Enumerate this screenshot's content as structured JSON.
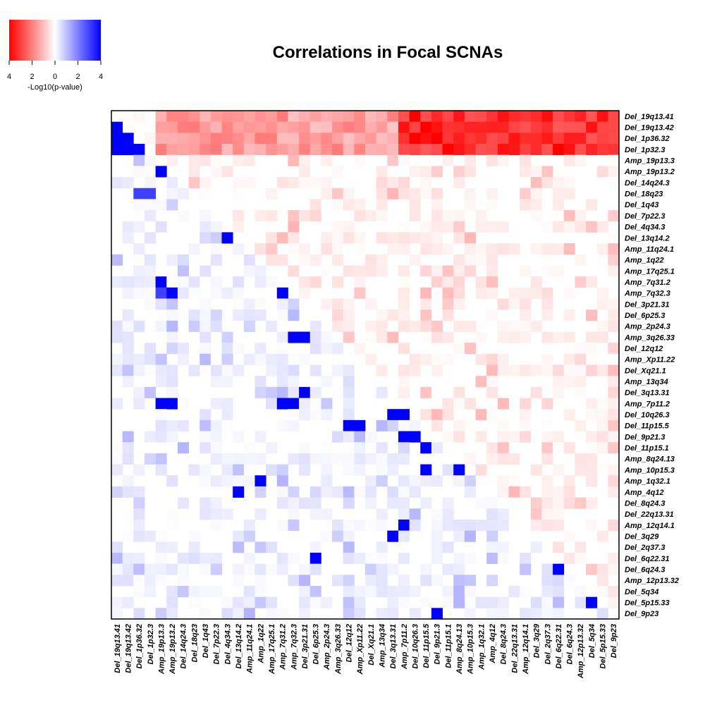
{
  "chart_data": {
    "type": "heatmap",
    "title": "Correlations in Focal SCNAs",
    "labels": [
      "Del_19q13.41",
      "Del_19q13.42",
      "Del_1p36.32",
      "Del_1p32.3",
      "Amp_19p13.3",
      "Amp_19p13.2",
      "Del_14q24.3",
      "Del_18q23",
      "Del_1q43",
      "Del_7p22.3",
      "Del_4q34.3",
      "Del_13q14.2",
      "Amp_11q24.1",
      "Amp_1q22",
      "Amp_17q25.1",
      "Amp_7q31.2",
      "Amp_7q32.3",
      "Del_3p21.31",
      "Del_6p25.3",
      "Amp_2p24.3",
      "Amp_3q26.33",
      "Del_12q12",
      "Amp_Xp11.22",
      "Del_Xq21.1",
      "Amp_13q34",
      "Del_3q13.31",
      "Amp_7p11.2",
      "Del_10q26.3",
      "Del_11p15.5",
      "Del_9p21.3",
      "Del_11p15.1",
      "Amp_8q24.13",
      "Amp_10p15.3",
      "Amp_1q32.1",
      "Amp_4q12",
      "Del_8q24.3",
      "Del_22q13.31",
      "Amp_12q14.1",
      "Del_3q29",
      "Del_2q37.3",
      "Del_6q22.31",
      "Del_6q24.3",
      "Amp_12p13.32",
      "Del_5q34",
      "Del_5p15.33",
      "Del_9p23"
    ],
    "legend": {
      "title": "-Log10(p-value)",
      "ticks": [
        "4",
        "2",
        "0",
        "2",
        "4"
      ],
      "colors": {
        "negative": "#ff0000",
        "zero": "#ffffff",
        "positive": "#0000ff"
      }
    },
    "value_range": [
      0,
      4
    ],
    "cell_rule": "upper triangle = negative association strength (red), lower triangle = positive association strength (blue)",
    "notable_cells": [
      {
        "row": "Del_19q13.42",
        "col": "Del_19q13.41",
        "value": 4,
        "sign": "positive"
      },
      {
        "row": "Del_1p36.32",
        "col": "Del_19q13.41",
        "value": 4,
        "sign": "positive"
      },
      {
        "row": "Del_1p36.32",
        "col": "Del_19q13.42",
        "value": 4,
        "sign": "positive"
      },
      {
        "row": "Del_1p32.3",
        "col": "Del_19q13.41",
        "value": 4,
        "sign": "positive"
      },
      {
        "row": "Del_1p32.3",
        "col": "Del_19q13.42",
        "value": 4,
        "sign": "positive"
      },
      {
        "row": "Del_1p32.3",
        "col": "Del_1p36.32",
        "value": 4,
        "sign": "positive"
      },
      {
        "row": "Amp_19p13.2",
        "col": "Amp_19p13.3",
        "value": 4,
        "sign": "positive"
      },
      {
        "row": "Del_18q23",
        "col": "Del_1p36.32",
        "value": 3,
        "sign": "positive"
      },
      {
        "row": "Del_18q23",
        "col": "Del_1p32.3",
        "value": 3,
        "sign": "positive"
      },
      {
        "row": "Del_13q14.2",
        "col": "Del_4q34.3",
        "value": 4,
        "sign": "positive"
      },
      {
        "row": "Amp_7q31.2",
        "col": "Amp_19p13.3",
        "value": 4,
        "sign": "positive"
      },
      {
        "row": "Amp_7q32.3",
        "col": "Amp_19p13.3",
        "value": 3,
        "sign": "positive"
      },
      {
        "row": "Amp_7q32.3",
        "col": "Amp_19p13.2",
        "value": 4,
        "sign": "positive"
      },
      {
        "row": "Amp_7q32.3",
        "col": "Amp_7q31.2",
        "value": 4,
        "sign": "positive"
      },
      {
        "row": "Amp_3q26.33",
        "col": "Amp_7q32.3",
        "value": 4,
        "sign": "positive"
      },
      {
        "row": "Amp_3q26.33",
        "col": "Del_3p21.31",
        "value": 4,
        "sign": "positive"
      },
      {
        "row": "Del_3q13.31",
        "col": "Del_3p21.31",
        "value": 4,
        "sign": "positive"
      },
      {
        "row": "Amp_7p11.2",
        "col": "Amp_19p13.3",
        "value": 4,
        "sign": "positive"
      },
      {
        "row": "Amp_7p11.2",
        "col": "Amp_19p13.2",
        "value": 4,
        "sign": "positive"
      },
      {
        "row": "Amp_7p11.2",
        "col": "Amp_7q31.2",
        "value": 4,
        "sign": "positive"
      },
      {
        "row": "Amp_7p11.2",
        "col": "Amp_7q32.3",
        "value": 4,
        "sign": "positive"
      },
      {
        "row": "Del_10q26.3",
        "col": "Amp_7p11.2",
        "value": 4,
        "sign": "positive"
      },
      {
        "row": "Del_10q26.3",
        "col": "Del_3q13.31",
        "value": 4,
        "sign": "positive"
      },
      {
        "row": "Del_11p15.5",
        "col": "Del_12q12",
        "value": 4,
        "sign": "positive"
      },
      {
        "row": "Del_11p15.5",
        "col": "Amp_Xp11.22",
        "value": 4,
        "sign": "positive"
      },
      {
        "row": "Del_9p21.3",
        "col": "Amp_7p11.2",
        "value": 4,
        "sign": "positive"
      },
      {
        "row": "Del_9p21.3",
        "col": "Del_10q26.3",
        "value": 4,
        "sign": "positive"
      },
      {
        "row": "Del_11p15.1",
        "col": "Del_11p15.5",
        "value": 4,
        "sign": "positive"
      },
      {
        "row": "Amp_10p15.3",
        "col": "Del_11p15.5",
        "value": 4,
        "sign": "positive"
      },
      {
        "row": "Amp_10p15.3",
        "col": "Amp_8q24.13",
        "value": 4,
        "sign": "positive"
      },
      {
        "row": "Amp_1q32.1",
        "col": "Amp_1q22",
        "value": 4,
        "sign": "positive"
      },
      {
        "row": "Amp_4q12",
        "col": "Del_13q14.2",
        "value": 4,
        "sign": "positive"
      },
      {
        "row": "Amp_12q14.1",
        "col": "Amp_7p11.2",
        "value": 4,
        "sign": "positive"
      },
      {
        "row": "Del_3q29",
        "col": "Del_3q13.31",
        "value": 4,
        "sign": "positive"
      },
      {
        "row": "Del_6q22.31",
        "col": "Del_6p25.3",
        "value": 4,
        "sign": "positive"
      },
      {
        "row": "Del_6q24.3",
        "col": "Del_6q22.31",
        "value": 4,
        "sign": "positive"
      },
      {
        "row": "Del_5p15.33",
        "col": "Del_5q34",
        "value": 4,
        "sign": "positive"
      },
      {
        "row": "Del_9p23",
        "col": "Del_9p21.3",
        "value": 4,
        "sign": "positive"
      },
      {
        "row": "Del_1p36.32",
        "col": "Del_10q26.3",
        "value": 4,
        "sign": "negative"
      },
      {
        "row": "Del_1p36.32",
        "col": "Del_9p21.3",
        "value": 4,
        "sign": "negative"
      },
      {
        "row": "Del_1p32.3",
        "col": "Del_11p15.1",
        "value": 4,
        "sign": "negative"
      },
      {
        "row": "Del_1p32.3",
        "col": "Del_6q22.31",
        "value": 4,
        "sign": "negative"
      },
      {
        "row": "Del_19q13.41",
        "col": "Del_10q26.3",
        "value": 4,
        "sign": "negative"
      },
      {
        "row": "Del_19q13.42",
        "col": "Del_11p15.5",
        "value": 4,
        "sign": "negative"
      }
    ]
  }
}
